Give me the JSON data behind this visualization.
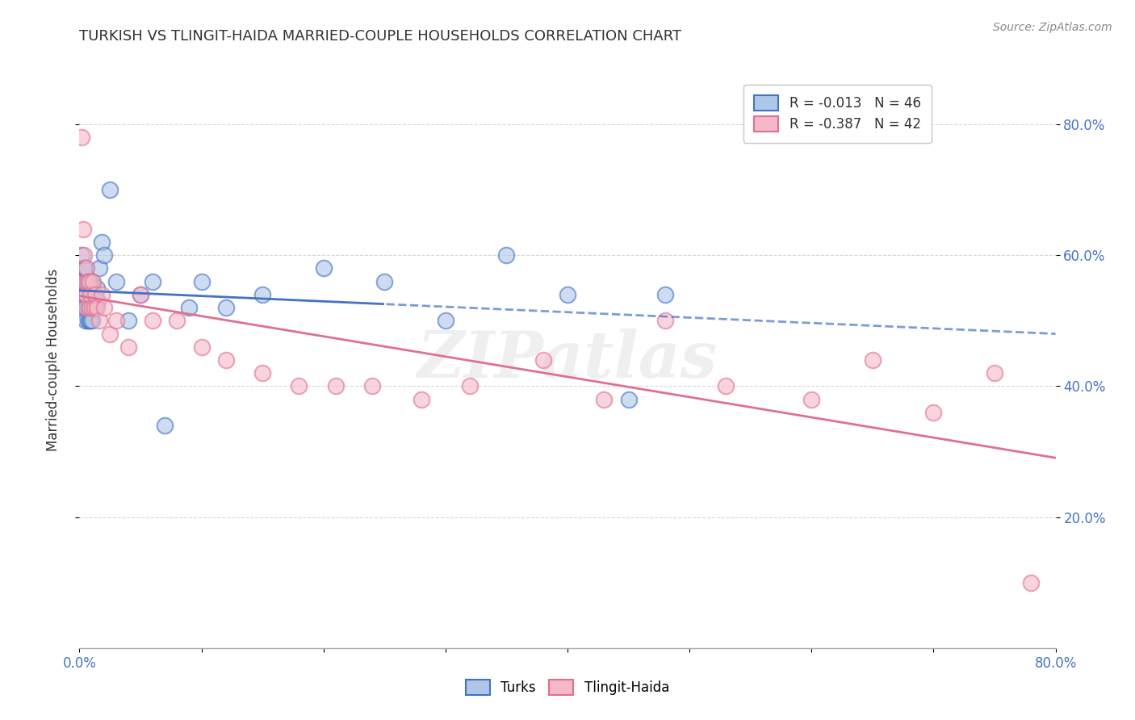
{
  "title": "TURKISH VS TLINGIT-HAIDA MARRIED-COUPLE HOUSEHOLDS CORRELATION CHART",
  "source_text": "Source: ZipAtlas.com",
  "ylabel": "Married-couple Households",
  "xlim": [
    0.0,
    0.8
  ],
  "ylim": [
    0.0,
    0.88
  ],
  "legend_labels": [
    "R = -0.013   N = 46",
    "R = -0.387   N = 42"
  ],
  "legend_series": [
    "Turks",
    "Tlingit-Haida"
  ],
  "blue_color": "#aec6e8",
  "pink_color": "#f4b8c8",
  "blue_line_color": "#4472c4",
  "pink_line_color": "#e07090",
  "background_color": "#ffffff",
  "grid_color": "#cccccc",
  "blue_points_x": [
    0.001,
    0.002,
    0.003,
    0.003,
    0.004,
    0.004,
    0.005,
    0.005,
    0.005,
    0.006,
    0.006,
    0.007,
    0.007,
    0.007,
    0.008,
    0.008,
    0.008,
    0.009,
    0.009,
    0.01,
    0.01,
    0.011,
    0.012,
    0.013,
    0.014,
    0.015,
    0.016,
    0.018,
    0.02,
    0.025,
    0.03,
    0.04,
    0.05,
    0.06,
    0.07,
    0.09,
    0.1,
    0.12,
    0.15,
    0.2,
    0.25,
    0.3,
    0.35,
    0.4,
    0.45,
    0.48
  ],
  "blue_points_y": [
    0.56,
    0.6,
    0.58,
    0.54,
    0.58,
    0.52,
    0.58,
    0.54,
    0.5,
    0.56,
    0.52,
    0.56,
    0.52,
    0.5,
    0.56,
    0.52,
    0.5,
    0.54,
    0.5,
    0.56,
    0.5,
    0.54,
    0.52,
    0.52,
    0.55,
    0.53,
    0.58,
    0.62,
    0.6,
    0.7,
    0.56,
    0.5,
    0.54,
    0.56,
    0.34,
    0.52,
    0.56,
    0.52,
    0.54,
    0.58,
    0.56,
    0.5,
    0.6,
    0.54,
    0.38,
    0.54
  ],
  "pink_points_x": [
    0.002,
    0.003,
    0.004,
    0.005,
    0.005,
    0.006,
    0.006,
    0.007,
    0.008,
    0.008,
    0.009,
    0.01,
    0.011,
    0.012,
    0.013,
    0.014,
    0.016,
    0.018,
    0.02,
    0.025,
    0.03,
    0.04,
    0.05,
    0.06,
    0.08,
    0.1,
    0.12,
    0.15,
    0.18,
    0.21,
    0.24,
    0.28,
    0.32,
    0.38,
    0.43,
    0.48,
    0.53,
    0.6,
    0.65,
    0.7,
    0.75,
    0.78
  ],
  "pink_points_y": [
    0.78,
    0.64,
    0.6,
    0.56,
    0.52,
    0.58,
    0.54,
    0.56,
    0.52,
    0.56,
    0.54,
    0.52,
    0.56,
    0.52,
    0.54,
    0.52,
    0.5,
    0.54,
    0.52,
    0.48,
    0.5,
    0.46,
    0.54,
    0.5,
    0.5,
    0.46,
    0.44,
    0.42,
    0.4,
    0.4,
    0.4,
    0.38,
    0.4,
    0.44,
    0.38,
    0.5,
    0.4,
    0.38,
    0.44,
    0.36,
    0.42,
    0.1
  ]
}
